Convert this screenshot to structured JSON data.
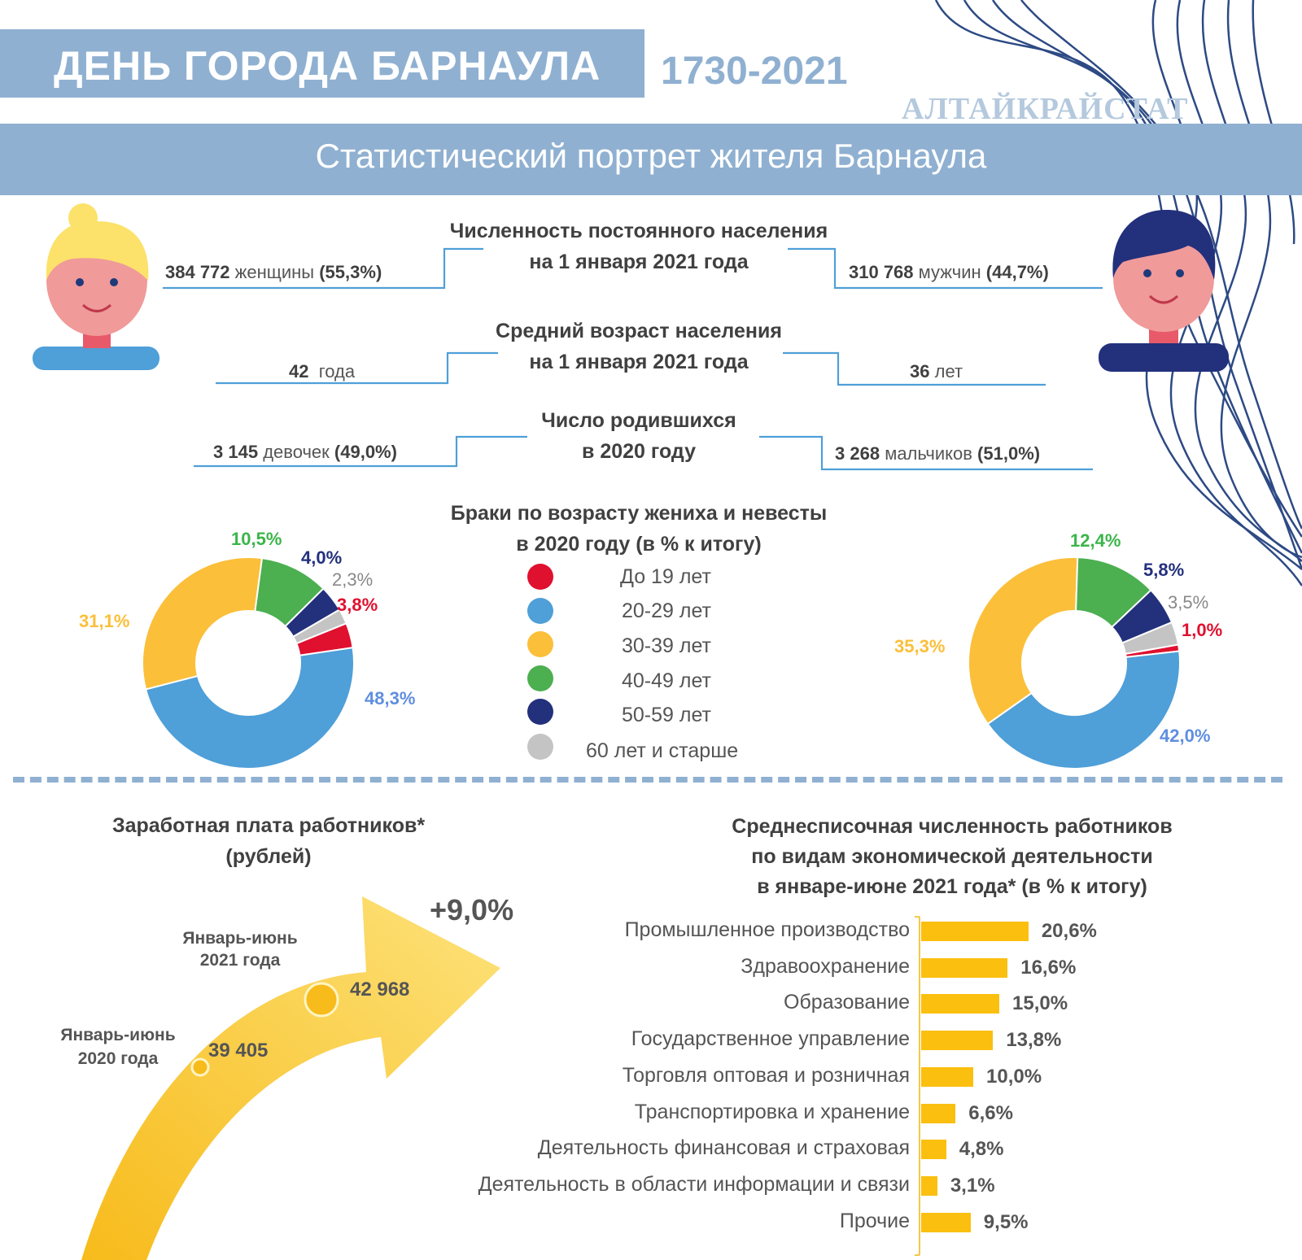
{
  "header": {
    "title": "ДЕНЬ ГОРОДА БАРНАУЛА",
    "years": "1730-2021",
    "org": "АЛТАЙКРАЙСТАТ",
    "subtitle": "Статистический портрет жителя Барнаула"
  },
  "population": {
    "heading_line1": "Численность постоянного населения",
    "heading_line2": "на 1 января 2021 года",
    "women_count": "384 772",
    "women_label": "женщины",
    "women_pct": "(55,3%)",
    "men_count": "310 768",
    "men_label": "мужчин",
    "men_pct": "(44,7%)"
  },
  "age": {
    "heading_line1": "Средний возраст населения",
    "heading_line2": "на 1 января 2021 года",
    "women_num": "42",
    "women_unit": "года",
    "men_num": "36",
    "men_unit": "лет"
  },
  "births": {
    "heading_line1": "Число родившихся",
    "heading_line2": "в 2020 году",
    "girls_count": "3 145",
    "girls_label": "девочек",
    "girls_pct": "(49,0%)",
    "boys_count": "3 268",
    "boys_label": "мальчиков",
    "boys_pct": "(51,0%)"
  },
  "marriages": {
    "heading_line1": "Браки по возрасту жениха и невесты",
    "heading_line2": "в 2020 году (в % к итогу)"
  },
  "wages": {
    "heading_line1": "Заработная плата работников*",
    "heading_line2": "(рублей)",
    "growth": "+9,0%",
    "label_2021_line1": "Январь-июнь",
    "label_2021_line2": "2021 года",
    "value_2021": "42 968",
    "label_2020_line1": "Январь-июнь",
    "label_2020_line2": "2020 года",
    "value_2020": "39 405"
  },
  "employment": {
    "heading_line1": "Среднесписочная численность работников",
    "heading_line2": "по видам экономической деятельности",
    "heading_line3": "в январе-июне 2021 года* (в % к итогу)"
  },
  "colors": {
    "accent": "#8fb0d1",
    "under19": "#e0102f",
    "age20_29": "#4f9fd8",
    "age30_39": "#fbbf3a",
    "age40_49": "#4caf50",
    "age50_59": "#23307c",
    "age60plus": "#c4c4c4",
    "bar": "#fbbf0f"
  },
  "chart_data": [
    {
      "type": "pie",
      "name": "bride",
      "categories": [
        "До 19 лет",
        "20-29 лет",
        "30-39 лет",
        "40-49 лет",
        "50-59 лет",
        "60 лет и старше"
      ],
      "values": [
        3.8,
        48.3,
        31.1,
        10.5,
        4.0,
        2.3
      ],
      "labels": [
        "3,8%",
        "48,3%",
        "31,1%",
        "10,5%",
        "4,0%",
        "2,3%"
      ]
    },
    {
      "type": "pie",
      "name": "groom",
      "categories": [
        "До 19 лет",
        "20-29 лет",
        "30-39 лет",
        "40-49 лет",
        "50-59 лет",
        "60 лет и старше"
      ],
      "values": [
        1.0,
        42.0,
        35.3,
        12.4,
        5.8,
        3.5
      ],
      "labels": [
        "1,0%",
        "42,0%",
        "35,3%",
        "12,4%",
        "5,8%",
        "3,5%"
      ]
    },
    {
      "type": "bar",
      "orientation": "horizontal",
      "categories": [
        "Промышленное производство",
        "Здравоохранение",
        "Образование",
        "Государственное управление",
        "Торговля оптовая и розничная",
        "Транспортировка и хранение",
        "Деятельность финансовая и страховая",
        "Деятельность в области информации и связи",
        "Прочие"
      ],
      "values": [
        20.6,
        16.6,
        15.0,
        13.8,
        10.0,
        6.6,
        4.8,
        3.1,
        9.5
      ],
      "labels": [
        "20,6%",
        "16,6%",
        "15,0%",
        "13,8%",
        "10,0%",
        "6,6%",
        "4,8%",
        "3,1%",
        "9,5%"
      ]
    }
  ]
}
